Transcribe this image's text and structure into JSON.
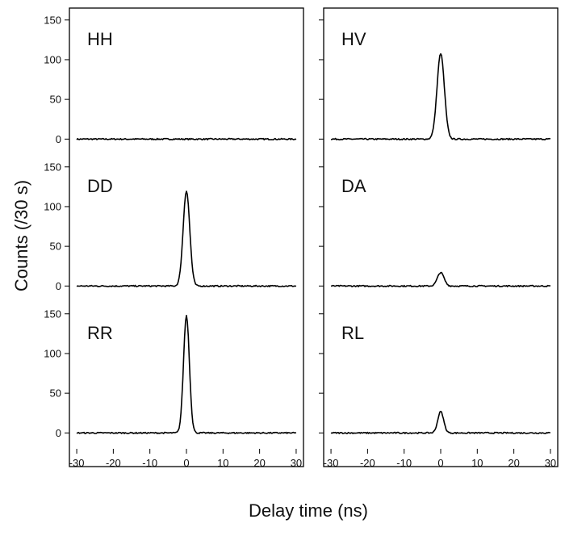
{
  "figure": {
    "ylabel": "Counts (/30 s)",
    "xlabel": "Delay time (ns)"
  },
  "colors": {
    "trace": "#000000",
    "axis": "#000000",
    "background": "#ffffff"
  },
  "chart_data": {
    "type": "line",
    "xlim": [
      -32,
      32
    ],
    "ylim": [
      -20,
      165
    ],
    "xticks": [
      -30,
      -20,
      -10,
      0,
      10,
      20,
      30
    ],
    "yticks": [
      0,
      50,
      100,
      150
    ],
    "layout": "3 rows x 2 columns, shared x axis per column, shared y axis per row",
    "panels": [
      {
        "label": "HH",
        "row": 0,
        "col": 0,
        "baseline": 0,
        "peak_x": 0,
        "peak": 0,
        "width": 0.9
      },
      {
        "label": "HV",
        "row": 0,
        "col": 1,
        "baseline": 0,
        "peak_x": 0,
        "peak": 108,
        "width": 1.0
      },
      {
        "label": "DD",
        "row": 1,
        "col": 0,
        "baseline": 0,
        "peak_x": 0,
        "peak": 120,
        "width": 0.9
      },
      {
        "label": "DA",
        "row": 1,
        "col": 1,
        "baseline": 0,
        "peak_x": 0,
        "peak": 17,
        "width": 0.9
      },
      {
        "label": "RR",
        "row": 2,
        "col": 0,
        "baseline": 0,
        "peak_x": 0,
        "peak": 148,
        "width": 0.8
      },
      {
        "label": "RL",
        "row": 2,
        "col": 1,
        "baseline": 0,
        "peak_x": 0,
        "peak": 27,
        "width": 0.8
      }
    ]
  }
}
